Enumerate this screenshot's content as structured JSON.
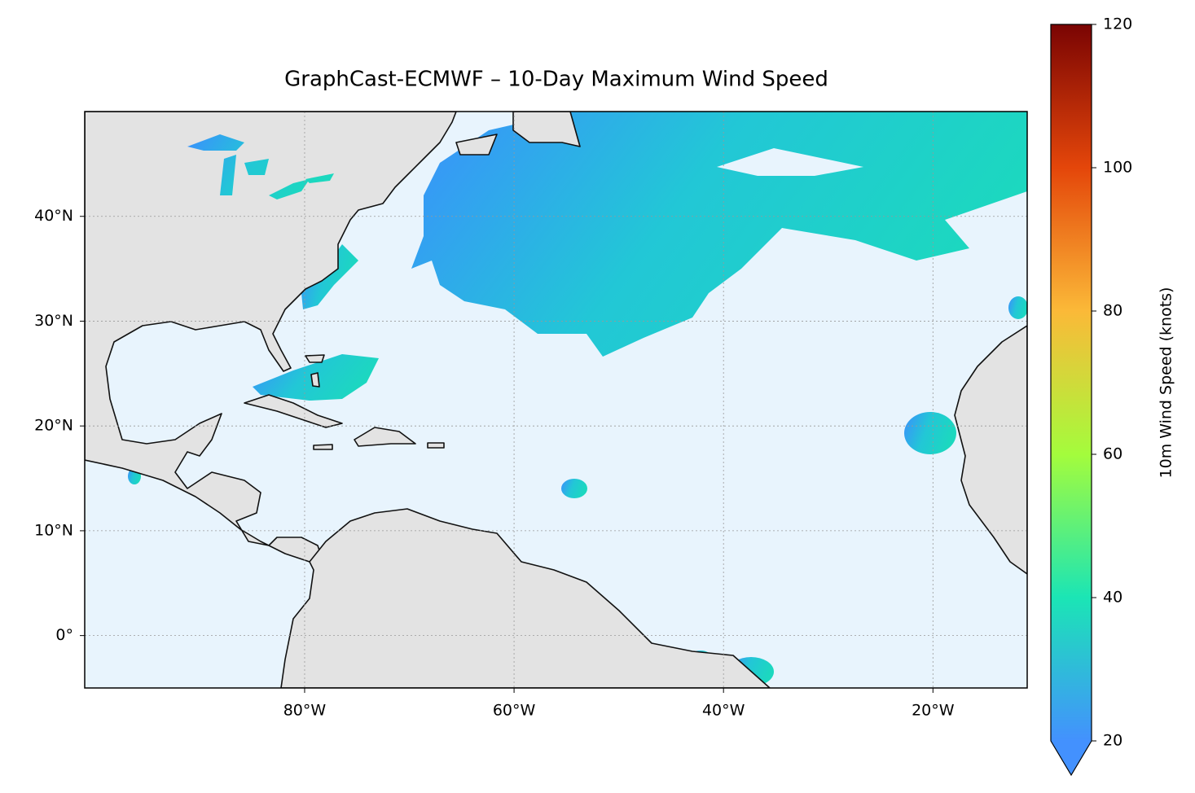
{
  "chart_data": {
    "type": "map",
    "title": "GraphCast-ECMWF – 10-Day Maximum Wind Speed",
    "xlim": [
      -101,
      -11
    ],
    "ylim": [
      -5,
      50
    ],
    "xticks": [
      {
        "value": -80,
        "label": "80°W"
      },
      {
        "value": -60,
        "label": "60°W"
      },
      {
        "value": -40,
        "label": "40°W"
      },
      {
        "value": -20,
        "label": "20°W"
      }
    ],
    "yticks": [
      {
        "value": 0,
        "label": "0°"
      },
      {
        "value": 10,
        "label": "10°N"
      },
      {
        "value": 20,
        "label": "20°N"
      },
      {
        "value": 30,
        "label": "30°N"
      },
      {
        "value": 40,
        "label": "40°N"
      }
    ],
    "grid": true,
    "colorbar": {
      "label": "10m Wind Speed (knots)",
      "lim": [
        20,
        120
      ],
      "ticks": [
        20,
        40,
        60,
        80,
        100,
        120
      ],
      "colors": [
        "#4391fe",
        "#1be5b5",
        "#a4fc3c",
        "#fbb938",
        "#e4460a",
        "#7a0403"
      ]
    }
  }
}
